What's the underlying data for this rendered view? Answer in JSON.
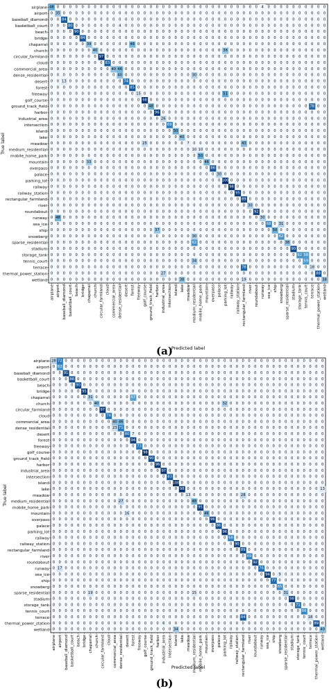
{
  "chart_data": [
    {
      "type": "heatmap",
      "panel_label": "(a)",
      "xlabel": "Predicted label",
      "ylabel": "True label",
      "categories": [
        "airplane",
        "airport",
        "baseball_diamond",
        "basketball_court",
        "beach",
        "bridge",
        "chaparral",
        "church",
        "circular_farmland",
        "cloud",
        "commercial_area",
        "dense_residential",
        "desert",
        "forest",
        "freeway",
        "golf_course",
        "ground_track_field",
        "harbor",
        "industrial_area",
        "intersection",
        "island",
        "lake",
        "meadow",
        "medium_residential",
        "mobile_home_park",
        "mountain",
        "overpass",
        "palace",
        "parking_lot",
        "railway",
        "railway_station",
        "rectangular_farmland",
        "river",
        "roundabout",
        "runway",
        "sea_ice",
        "ship",
        "snowberg",
        "sparse_residential",
        "stadium",
        "storage_tank",
        "tennis_court",
        "terrace",
        "thermal_power_station",
        "wetland"
      ],
      "off_diagonal": [
        {
          "row": 0,
          "col": 34,
          "v": 4
        },
        {
          "row": 3,
          "col": 11,
          "v": 4
        },
        {
          "row": 6,
          "col": 13,
          "v": 46
        },
        {
          "row": 7,
          "col": 28,
          "v": 38
        },
        {
          "row": 10,
          "col": 11,
          "v": 46
        },
        {
          "row": 11,
          "col": 23,
          "v": 30
        },
        {
          "row": 12,
          "col": 2,
          "v": 13
        },
        {
          "row": 14,
          "col": 28,
          "v": 51
        },
        {
          "row": 16,
          "col": 42,
          "v": 78
        },
        {
          "row": 22,
          "col": 15,
          "v": 25
        },
        {
          "row": 22,
          "col": 31,
          "v": 43
        },
        {
          "row": 23,
          "col": 24,
          "v": 10
        },
        {
          "row": 25,
          "col": 6,
          "v": 33
        },
        {
          "row": 34,
          "col": 1,
          "v": 48
        },
        {
          "row": 35,
          "col": 37,
          "v": 31
        },
        {
          "row": 36,
          "col": 17,
          "v": 37
        },
        {
          "row": 37,
          "col": 23,
          "v": 30
        },
        {
          "row": 38,
          "col": 23,
          "v": 62
        },
        {
          "row": 40,
          "col": 41,
          "v": 58
        },
        {
          "row": 41,
          "col": 23,
          "v": 34
        },
        {
          "row": 42,
          "col": 31,
          "v": 78
        },
        {
          "row": 43,
          "col": 18,
          "v": 27
        },
        {
          "row": 44,
          "col": 21,
          "v": 38
        },
        {
          "row": 44,
          "col": 31,
          "v": 19
        }
      ],
      "diagonal": [
        48,
        35,
        84,
        80,
        90,
        84,
        39,
        40,
        97,
        83,
        40,
        40,
        74,
        85,
        15,
        98,
        48,
        96,
        26,
        69,
        50,
        40,
        7,
        10,
        50,
        46,
        86,
        30,
        100,
        98,
        95,
        89,
        30,
        92,
        30,
        68,
        50,
        62,
        38,
        90,
        62,
        59,
        18,
        88,
        38
      ]
    },
    {
      "type": "heatmap",
      "panel_label": "(b)",
      "xlabel": "Predicted label",
      "ylabel": "True label",
      "categories": [
        "airplane",
        "airport",
        "baseball_diamond",
        "basketball_court",
        "beach",
        "bridge",
        "chaparral",
        "church",
        "circular_farmland",
        "cloud",
        "commercial_area",
        "dense_residential",
        "desert",
        "forest",
        "freeway",
        "golf_course",
        "ground_track_field",
        "harbor",
        "industrial_area",
        "intersection",
        "island",
        "lake",
        "meadow",
        "medium_residential",
        "mobile_home_park",
        "mountain",
        "overpass",
        "palace",
        "parking_lot",
        "railway",
        "railway_station",
        "rectangular_farmland",
        "river",
        "roundabout",
        "runway",
        "sea_ice",
        "ship",
        "snowberg",
        "sparse_residential",
        "stadium",
        "storage_tank",
        "tennis_court",
        "terrace",
        "thermal_power_station",
        "wetland"
      ],
      "off_diagonal": [
        {
          "row": 0,
          "col": 1,
          "v": 72
        },
        {
          "row": 6,
          "col": 13,
          "v": 57
        },
        {
          "row": 7,
          "col": 28,
          "v": 32
        },
        {
          "row": 10,
          "col": 11,
          "v": 46
        },
        {
          "row": 11,
          "col": 10,
          "v": 23
        },
        {
          "row": 12,
          "col": 13,
          "v": 7
        },
        {
          "row": 21,
          "col": 44,
          "v": 13
        },
        {
          "row": 22,
          "col": 31,
          "v": 28
        },
        {
          "row": 23,
          "col": 11,
          "v": 27
        },
        {
          "row": 25,
          "col": 12,
          "v": 16
        },
        {
          "row": 34,
          "col": 1,
          "v": 17
        },
        {
          "row": 35,
          "col": 37,
          "v": 9
        },
        {
          "row": 38,
          "col": 6,
          "v": 19
        },
        {
          "row": 38,
          "col": 23,
          "v": 15
        },
        {
          "row": 42,
          "col": 31,
          "v": 84
        },
        {
          "row": 43,
          "col": 18,
          "v": 6
        },
        {
          "row": 44,
          "col": 20,
          "v": 34
        }
      ],
      "diagonal": [
        28,
        62,
        91,
        88,
        90,
        95,
        31,
        40,
        97,
        74,
        40,
        71,
        80,
        94,
        73,
        98,
        90,
        96,
        97,
        83,
        100,
        98,
        13,
        48,
        95,
        46,
        96,
        86,
        96,
        68,
        90,
        89,
        69,
        92,
        76,
        94,
        77,
        65,
        31,
        98,
        71,
        66,
        18,
        89,
        40
      ]
    }
  ]
}
